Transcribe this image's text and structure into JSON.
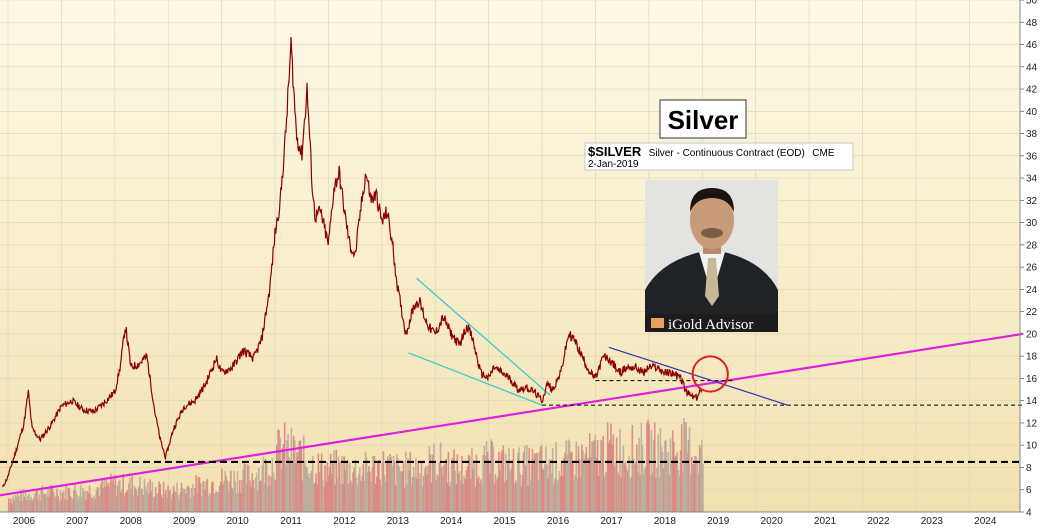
{
  "chart_data": {
    "type": "line",
    "title": "Silver",
    "symbol": "$SILVER",
    "description": "Silver - Continuous Contract (EOD)",
    "exchange": "CME",
    "date": "2-Jan-2019",
    "x_tick_labels": [
      "2006",
      "2007",
      "2008",
      "2009",
      "2010",
      "2011",
      "2012",
      "2013",
      "2014",
      "2015",
      "2016",
      "2017",
      "2018",
      "2019",
      "2020",
      "2021",
      "2022",
      "2023",
      "2024"
    ],
    "y_tick_labels": [
      4,
      6,
      8,
      10,
      12,
      14,
      16,
      18,
      20,
      22,
      24,
      26,
      28,
      30,
      32,
      34,
      36,
      38,
      40,
      42,
      44,
      46,
      48,
      50
    ],
    "xlim": [
      2005.85,
      2024.95
    ],
    "ylim": [
      4,
      50
    ],
    "grid": true,
    "price_series": {
      "name": "Silver",
      "color": "#8b0000",
      "x": [
        2005.9,
        2006.0,
        2006.15,
        2006.3,
        2006.38,
        2006.45,
        2006.6,
        2006.8,
        2007.0,
        2007.2,
        2007.4,
        2007.6,
        2007.8,
        2008.0,
        2008.1,
        2008.2,
        2008.3,
        2008.45,
        2008.6,
        2008.75,
        2008.85,
        2008.95,
        2009.1,
        2009.3,
        2009.5,
        2009.7,
        2009.9,
        2010.0,
        2010.2,
        2010.4,
        2010.6,
        2010.75,
        2010.9,
        2011.0,
        2011.1,
        2011.2,
        2011.3,
        2011.4,
        2011.5,
        2011.6,
        2011.7,
        2011.75,
        2011.85,
        2012.0,
        2012.1,
        2012.2,
        2012.3,
        2012.4,
        2012.5,
        2012.6,
        2012.7,
        2012.8,
        2012.9,
        2013.0,
        2013.1,
        2013.2,
        2013.3,
        2013.45,
        2013.6,
        2013.7,
        2013.8,
        2013.9,
        2014.0,
        2014.15,
        2014.3,
        2014.45,
        2014.6,
        2014.7,
        2014.85,
        2015.0,
        2015.1,
        2015.25,
        2015.4,
        2015.55,
        2015.7,
        2015.85,
        2016.0,
        2016.1,
        2016.2,
        2016.35,
        2016.5,
        2016.6,
        2016.75,
        2016.9,
        2017.0,
        2017.15,
        2017.3,
        2017.45,
        2017.6,
        2017.75,
        2017.9,
        2018.0,
        2018.15,
        2018.3,
        2018.45,
        2018.6,
        2018.7,
        2018.8,
        2018.9,
        2019.0
      ],
      "y": [
        6.2,
        7.2,
        9.5,
        12.0,
        14.8,
        11.5,
        10.5,
        11.8,
        13.5,
        14.0,
        13.2,
        13.0,
        13.8,
        14.8,
        17.0,
        20.8,
        17.0,
        17.3,
        18.0,
        13.0,
        10.5,
        8.9,
        11.5,
        13.5,
        14.0,
        15.5,
        17.8,
        16.5,
        17.0,
        18.5,
        17.8,
        19.5,
        24.0,
        29.0,
        32.0,
        38.0,
        46.0,
        38.0,
        36.0,
        42.0,
        33.0,
        30.5,
        31.0,
        28.0,
        33.0,
        34.5,
        31.0,
        28.0,
        27.0,
        31.0,
        34.5,
        32.0,
        32.5,
        30.0,
        31.0,
        28.0,
        24.0,
        20.0,
        22.5,
        23.0,
        21.5,
        20.5,
        20.0,
        21.5,
        20.0,
        19.0,
        20.8,
        19.5,
        16.5,
        16.0,
        17.0,
        16.5,
        16.0,
        15.0,
        15.2,
        14.8,
        14.0,
        15.5,
        15.0,
        16.5,
        20.0,
        19.5,
        18.0,
        16.5,
        16.0,
        18.0,
        17.5,
        16.5,
        17.0,
        17.0,
        16.5,
        17.0,
        17.0,
        16.5,
        16.5,
        16.0,
        14.8,
        14.4,
        14.2,
        15.3
      ]
    },
    "volume_series": {
      "name": "Volume",
      "color": "#cc6666",
      "x": [
        2006.0,
        2006.5,
        2007.0,
        2007.5,
        2008.0,
        2008.5,
        2009.0,
        2009.5,
        2010.0,
        2010.5,
        2010.9,
        2011.1,
        2011.3,
        2011.6,
        2011.9,
        2012.2,
        2012.6,
        2013.0,
        2013.3,
        2013.7,
        2014.0,
        2014.5,
        2015.0,
        2015.5,
        2016.0,
        2016.5,
        2017.0,
        2017.3,
        2017.6,
        2018.0,
        2018.3,
        2018.6,
        2018.9,
        2019.0
      ],
      "y_axis_units": [
        5.5,
        6.0,
        6.2,
        6.4,
        7.0,
        6.8,
        6.2,
        6.8,
        7.5,
        7.8,
        9.0,
        11.0,
        10.5,
        9.5,
        8.5,
        8.8,
        8.5,
        9.0,
        8.5,
        8.8,
        9.5,
        8.5,
        9.5,
        9.0,
        9.2,
        9.5,
        10.2,
        11.0,
        10.5,
        11.0,
        10.5,
        11.2,
        10.5,
        10.0
      ]
    },
    "annotations": [
      {
        "type": "line",
        "label": "long-term uptrend",
        "color": "#e020e0",
        "x": [
          2005.85,
          2025.0
        ],
        "y": [
          5.5,
          20.0
        ]
      },
      {
        "type": "line",
        "label": "support 8.5",
        "color": "#000000",
        "dashed": true,
        "x": [
          2005.85,
          2025.0
        ],
        "y": [
          8.5,
          8.5
        ]
      },
      {
        "type": "line",
        "label": "support 13.6",
        "color": "#000000",
        "dashed": true,
        "x": [
          2016.0,
          2025.0
        ],
        "y": [
          13.6,
          13.6
        ]
      },
      {
        "type": "line",
        "label": "support 15.8",
        "color": "#000000",
        "dashed": true,
        "x": [
          2017.0,
          2019.6
        ],
        "y": [
          15.8,
          15.8
        ]
      },
      {
        "type": "line",
        "label": "wedge upper",
        "color": "#33cccc",
        "x": [
          2013.65,
          2016.15
        ],
        "y": [
          25.0,
          14.5
        ]
      },
      {
        "type": "line",
        "label": "wedge lower",
        "color": "#33cccc",
        "x": [
          2013.5,
          2016.0
        ],
        "y": [
          18.3,
          13.6
        ]
      },
      {
        "type": "line",
        "label": "downtrend",
        "color": "#3333aa",
        "x": [
          2017.25,
          2020.6
        ],
        "y": [
          18.8,
          13.6
        ]
      },
      {
        "type": "circle",
        "label": "breakout zone",
        "color": "#dd2222",
        "cx": 2019.15,
        "cy": 16.4,
        "r_units_x": 0.33
      }
    ],
    "inset": {
      "brand_text": "iGold Advisor",
      "brand_icon": "gold-bar-icon"
    }
  }
}
